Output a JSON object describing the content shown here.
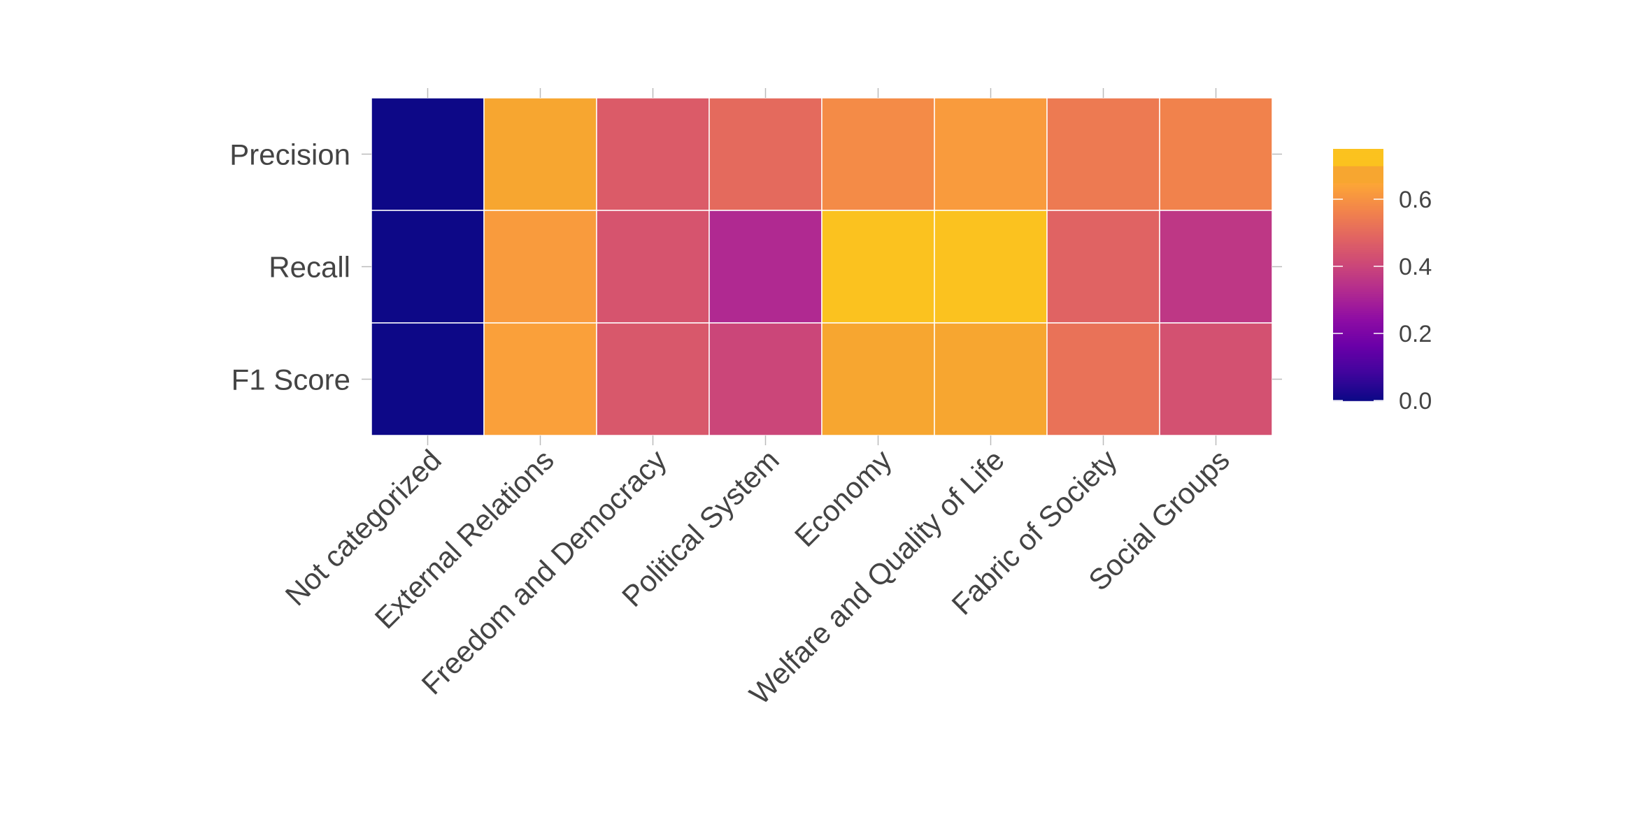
{
  "chart_data": {
    "type": "heatmap",
    "rows": [
      "Precision",
      "Recall",
      "F1 Score"
    ],
    "columns": [
      "Not categorized",
      "External Relations",
      "Freedom and Democracy",
      "Political System",
      "Economy",
      "Welfare and Quality of Life",
      "Fabric of Society",
      "Social Groups"
    ],
    "values": [
      [
        0.0,
        0.65,
        0.46,
        0.5,
        0.58,
        0.62,
        0.54,
        0.56
      ],
      [
        0.0,
        0.62,
        0.44,
        0.32,
        0.75,
        0.74,
        0.48,
        0.36
      ],
      [
        0.0,
        0.63,
        0.45,
        0.4,
        0.65,
        0.66,
        0.52,
        0.43
      ]
    ],
    "colorbar": {
      "min": 0.0,
      "max": 0.75,
      "ticks": [
        0.0,
        0.2,
        0.4,
        0.6
      ],
      "tick_labels": [
        "0.0",
        "0.2",
        "0.4",
        "0.6"
      ],
      "colormap": "plasma"
    },
    "title": "",
    "xlabel": "",
    "ylabel": "",
    "grid": false,
    "legend_placement": "right"
  }
}
